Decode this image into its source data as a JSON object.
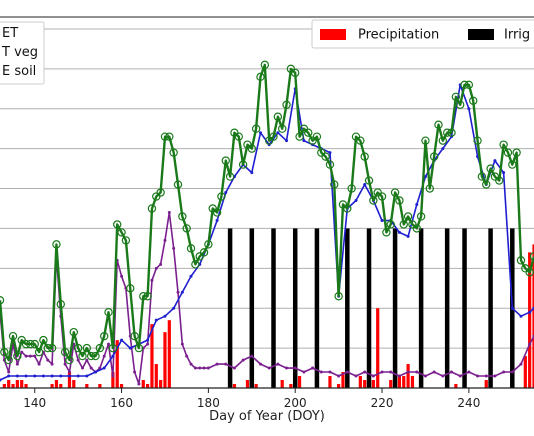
{
  "chart_data": {
    "type": "line",
    "title": "",
    "xlabel": "Day of Year (DOY)",
    "ylabel": "",
    "xlim": [
      132,
      255
    ],
    "ylim": [
      0,
      9.3
    ],
    "x_ticks": [
      140,
      160,
      180,
      200,
      220,
      240
    ],
    "grid": "y",
    "legend_left": {
      "placement": "top-left",
      "entries": [
        "ET",
        "T veg",
        "E soil"
      ]
    },
    "legend_right": {
      "placement": "top-right",
      "entries": [
        "Precipitation",
        "Irrig"
      ]
    },
    "colors": {
      "et": "#1a7a1a",
      "tveg": "#1f1fd0",
      "esoil": "#7b1f8f",
      "precip": "#ff0000",
      "irrig": "#000000",
      "grid": "#b0b0b0"
    },
    "series_et": {
      "name": "ET",
      "x": [
        132,
        133,
        134,
        135,
        136,
        137,
        138,
        139,
        140,
        141,
        142,
        143,
        144,
        145,
        146,
        147,
        148,
        149,
        150,
        151,
        152,
        153,
        154,
        155,
        156,
        157,
        158,
        159,
        160,
        161,
        162,
        163,
        164,
        165,
        166,
        167,
        168,
        169,
        170,
        171,
        172,
        173,
        174,
        175,
        176,
        177,
        178,
        179,
        180,
        181,
        182,
        183,
        184,
        185,
        186,
        187,
        188,
        189,
        190,
        191,
        192,
        193,
        194,
        195,
        196,
        197,
        198,
        199,
        200,
        201,
        202,
        203,
        204,
        205,
        206,
        207,
        208,
        209,
        210,
        211,
        212,
        213,
        214,
        215,
        216,
        217,
        218,
        219,
        220,
        221,
        222,
        223,
        224,
        225,
        226,
        227,
        228,
        229,
        230,
        231,
        232,
        233,
        234,
        235,
        236,
        237,
        238,
        239,
        240,
        241,
        242,
        243,
        244,
        245,
        246,
        247,
        248,
        249,
        250,
        251,
        252,
        253,
        254,
        255
      ],
      "y": [
        2.2,
        0.9,
        0.7,
        1.3,
        0.8,
        1.2,
        1.1,
        1.1,
        1.1,
        0.9,
        1.2,
        1.0,
        1.0,
        3.6,
        2.1,
        0.9,
        0.7,
        1.4,
        1.0,
        0.8,
        1.0,
        0.8,
        0.8,
        1.0,
        1.3,
        1.9,
        1.0,
        4.1,
        3.9,
        3.7,
        2.5,
        1.3,
        1.0,
        2.3,
        2.3,
        4.5,
        4.8,
        4.9,
        6.3,
        6.3,
        5.9,
        5.1,
        4.3,
        4.0,
        3.5,
        3.1,
        3.3,
        3.4,
        3.6,
        4.5,
        4.4,
        4.8,
        5.7,
        5.3,
        6.4,
        6.3,
        5.6,
        6.1,
        6.0,
        6.5,
        7.8,
        8.1,
        6.2,
        6.3,
        6.8,
        6.5,
        7.1,
        8.0,
        7.9,
        6.3,
        6.5,
        6.4,
        6.2,
        6.3,
        5.9,
        5.8,
        5.6,
        5.1,
        2.3,
        4.6,
        4.5,
        5.0,
        6.3,
        6.2,
        5.8,
        5.2,
        4.7,
        4.9,
        4.8,
        3.9,
        4.1,
        4.9,
        4.7,
        4.1,
        4.3,
        4.1,
        4.0,
        4.3,
        6.2,
        5.0,
        5.8,
        6.6,
        6.2,
        6.4,
        6.4,
        7.3,
        7.1,
        7.6,
        7.6,
        7.2,
        6.2,
        5.3,
        5.1,
        5.5,
        5.3,
        5.2,
        6.1,
        5.9,
        5.6,
        5.9,
        3.2,
        3.0,
        2.9,
        3.3
      ]
    },
    "series_tveg": {
      "name": "T veg",
      "x": [
        132,
        134,
        136,
        138,
        140,
        142,
        144,
        146,
        148,
        150,
        152,
        154,
        156,
        158,
        160,
        162,
        164,
        166,
        168,
        170,
        172,
        174,
        176,
        178,
        180,
        182,
        184,
        186,
        188,
        190,
        192,
        194,
        196,
        198,
        200,
        202,
        204,
        206,
        208,
        210,
        212,
        214,
        216,
        218,
        220,
        222,
        224,
        226,
        228,
        230,
        232,
        234,
        236,
        238,
        240,
        242,
        244,
        246,
        248,
        250,
        252,
        254,
        255
      ],
      "y": [
        0.2,
        0.3,
        0.3,
        0.3,
        0.3,
        0.3,
        0.3,
        0.3,
        0.3,
        0.3,
        0.3,
        0.4,
        0.5,
        0.8,
        1.2,
        1.0,
        1.1,
        1.2,
        1.7,
        1.8,
        2.0,
        2.4,
        2.8,
        3.1,
        3.6,
        4.2,
        4.9,
        5.3,
        5.6,
        5.4,
        6.4,
        6.1,
        6.4,
        6.2,
        7.5,
        6.2,
        6.1,
        6.0,
        5.9,
        2.3,
        4.5,
        4.7,
        5.1,
        4.7,
        4.2,
        4.2,
        3.9,
        3.8,
        4.6,
        5.3,
        5.7,
        6.0,
        6.3,
        7.6,
        7.0,
        5.8,
        5.1,
        5.7,
        5.4,
        2.0,
        1.8,
        1.9,
        2.0
      ]
    },
    "series_esoil": {
      "name": "E soil",
      "x": [
        132,
        133,
        134,
        135,
        136,
        137,
        138,
        139,
        140,
        141,
        142,
        143,
        144,
        145,
        146,
        147,
        148,
        149,
        150,
        151,
        152,
        153,
        154,
        155,
        156,
        157,
        158,
        159,
        160,
        161,
        162,
        163,
        164,
        165,
        166,
        167,
        168,
        169,
        170,
        171,
        172,
        173,
        174,
        175,
        176,
        177,
        178,
        179,
        180,
        182,
        184,
        186,
        188,
        190,
        192,
        194,
        196,
        198,
        200,
        202,
        204,
        206,
        208,
        210,
        212,
        214,
        216,
        218,
        220,
        222,
        224,
        226,
        228,
        230,
        232,
        234,
        236,
        238,
        240,
        242,
        244,
        246,
        248,
        250,
        252,
        254,
        255
      ],
      "y": [
        1.9,
        0.7,
        0.4,
        1.1,
        0.6,
        0.9,
        0.8,
        0.8,
        0.8,
        0.6,
        0.9,
        0.7,
        0.6,
        3.3,
        1.8,
        0.6,
        0.4,
        1.1,
        0.7,
        0.5,
        0.7,
        0.5,
        0.4,
        0.5,
        0.8,
        1.1,
        0.3,
        3.2,
        2.8,
        2.5,
        1.3,
        0.4,
        0.1,
        1.0,
        1.1,
        2.7,
        3.0,
        3.1,
        3.7,
        4.4,
        3.5,
        2.4,
        1.1,
        0.8,
        0.6,
        0.5,
        0.5,
        0.5,
        0.5,
        0.6,
        0.6,
        0.5,
        0.7,
        0.8,
        0.6,
        0.5,
        0.6,
        0.5,
        0.5,
        0.4,
        0.5,
        0.4,
        0.4,
        0.3,
        0.4,
        0.3,
        0.4,
        0.3,
        0.4,
        0.4,
        0.3,
        0.4,
        0.4,
        0.3,
        0.4,
        0.3,
        0.4,
        0.3,
        0.4,
        0.3,
        0.3,
        0.3,
        0.4,
        0.4,
        0.6,
        1.1,
        1.3
      ]
    },
    "precipitation": {
      "x": [
        133,
        134,
        135,
        136,
        137,
        138,
        144,
        145,
        146,
        148,
        149,
        152,
        155,
        158,
        159,
        160,
        165,
        166,
        167,
        168,
        169,
        170,
        171,
        186,
        189,
        191,
        195,
        197,
        199,
        201,
        208,
        210,
        211,
        215,
        216,
        217,
        218,
        219,
        222,
        224,
        225,
        226,
        227,
        237,
        244,
        253,
        254,
        255
      ],
      "y": [
        0.1,
        0.2,
        0.1,
        0.2,
        0.2,
        0.1,
        0.1,
        0.2,
        0.1,
        0.4,
        0.2,
        0.1,
        0.1,
        0.4,
        1.2,
        0.1,
        0.2,
        0.1,
        1.6,
        0.6,
        0.2,
        1.4,
        1.7,
        0.1,
        0.2,
        0.1,
        0.1,
        0.2,
        0.1,
        0.3,
        0.3,
        0.1,
        0.4,
        0.3,
        0.2,
        0.1,
        0.2,
        2.0,
        0.2,
        0.3,
        0.3,
        0.6,
        0.3,
        0.1,
        0.2,
        0.8,
        3.4,
        3.6
      ]
    },
    "irrigation": {
      "x": [
        185,
        190,
        195,
        200,
        205,
        212,
        217,
        223,
        229,
        235,
        239,
        245,
        250
      ],
      "y": [
        4.0,
        4.0,
        4.0,
        4.0,
        4.0,
        4.0,
        4.0,
        4.0,
        4.0,
        4.0,
        4.0,
        4.0,
        4.0
      ]
    }
  }
}
